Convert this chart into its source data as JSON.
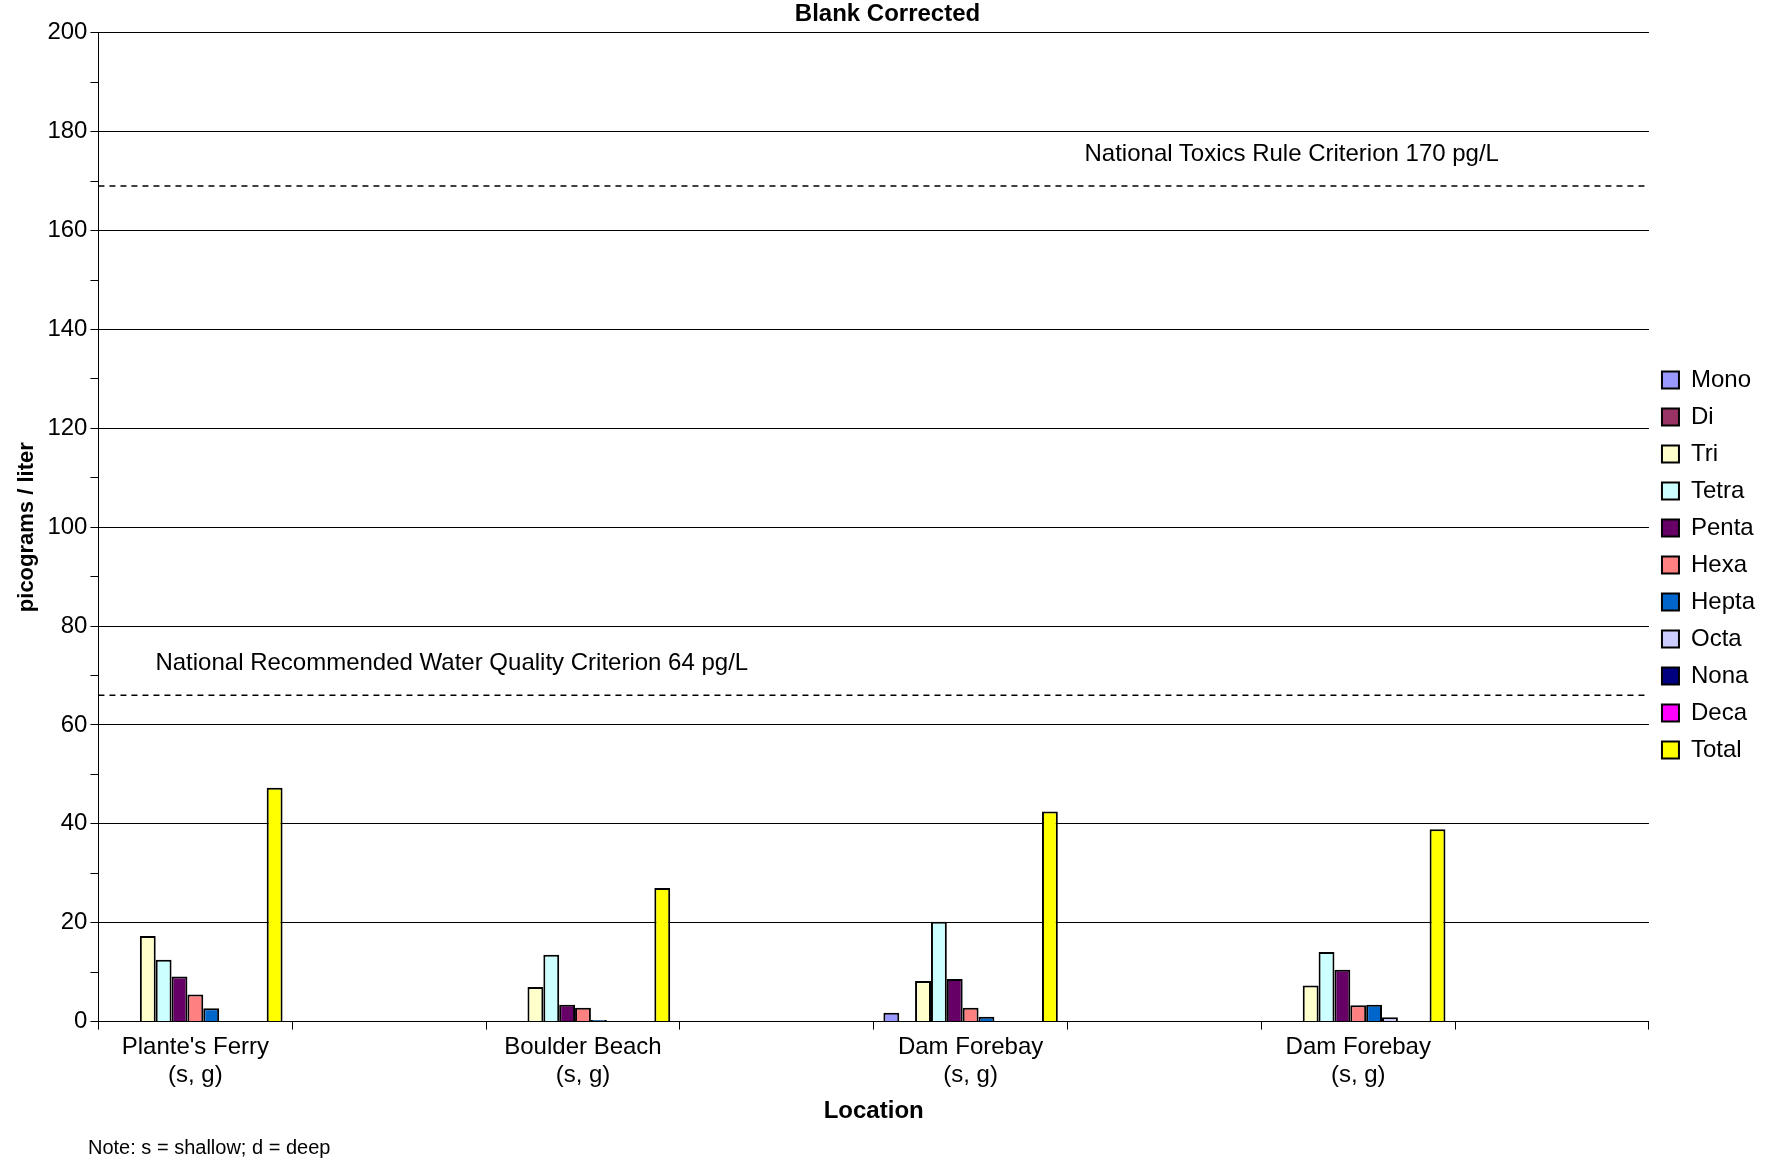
{
  "chart_data": {
    "type": "bar",
    "title": "Blank Corrected",
    "xlabel": "Location",
    "ylabel": "picograms / liter",
    "categories": [
      "Plante's Ferry\n(s, g)",
      null,
      "Boulder Beach\n(s, g)",
      null,
      "Dam Forebay\n(s, g)",
      null,
      "Dam Forebay\n(s, g)",
      null
    ],
    "series": [
      {
        "name": "Mono",
        "color": "#9999ff",
        "values": [
          null,
          null,
          null,
          null,
          1.8,
          null,
          null,
          null
        ]
      },
      {
        "name": "Di",
        "color": "#993366",
        "values": [
          null,
          null,
          null,
          null,
          null,
          null,
          null,
          null
        ]
      },
      {
        "name": "Tri",
        "color": "#ffffcc",
        "values": [
          17.3,
          null,
          7,
          null,
          8.2,
          null,
          7.3,
          null
        ]
      },
      {
        "name": "Tetra",
        "color": "#ccffff",
        "values": [
          12.5,
          null,
          13.5,
          null,
          20.2,
          null,
          14.1,
          null
        ]
      },
      {
        "name": "Penta",
        "color": "#660066",
        "values": [
          9.1,
          null,
          3.4,
          null,
          8.6,
          null,
          10.5,
          null
        ]
      },
      {
        "name": "Hexa",
        "color": "#ff8080",
        "values": [
          5.5,
          null,
          2.8,
          null,
          2.8,
          null,
          3.3,
          null
        ]
      },
      {
        "name": "Hepta",
        "color": "#0066cc",
        "values": [
          2.7,
          null,
          0.3,
          null,
          1,
          null,
          3.4,
          null
        ]
      },
      {
        "name": "Octa",
        "color": "#ccccff",
        "values": [
          null,
          null,
          null,
          null,
          null,
          null,
          0.9,
          null
        ]
      },
      {
        "name": "Nona",
        "color": "#000080",
        "values": [
          null,
          null,
          null,
          null,
          null,
          null,
          null,
          null
        ]
      },
      {
        "name": "Deca",
        "color": "#ff00ff",
        "values": [
          null,
          null,
          null,
          null,
          null,
          null,
          null,
          null
        ]
      },
      {
        "name": "Total",
        "color": "#ffff00",
        "values": [
          47.3,
          null,
          27,
          null,
          42.5,
          null,
          38.9,
          null
        ]
      }
    ],
    "ylim": [
      0,
      200
    ],
    "yticks": [
      0,
      {
        "value": 10,
        "label": null
      },
      20,
      {
        "value": 30,
        "label": null
      },
      40,
      {
        "value": 50,
        "label": null
      },
      60,
      {
        "value": 70,
        "label": null
      },
      80,
      {
        "value": 90,
        "label": null
      },
      100,
      {
        "value": 110,
        "label": null
      },
      120,
      {
        "value": 130,
        "label": null
      },
      140,
      {
        "value": 150,
        "label": null
      },
      160,
      {
        "value": 170,
        "label": null
      },
      180,
      {
        "value": 190,
        "label": null
      },
      200
    ],
    "ref_lines": [
      {
        "axis": "y",
        "value": 66,
        "label": "National Recommended Water Quality Criterion 64 pg/L",
        "line_style": "dashed",
        "color": "#000000"
      },
      {
        "axis": "y",
        "value": 169,
        "label": "National Toxics Rule Criterion 170 pg/L",
        "line_style": "dashed",
        "color": "#000000"
      }
    ],
    "annotations": [
      "Note: s = shallow; d = deep"
    ],
    "grid": "y",
    "legend": "right"
  }
}
